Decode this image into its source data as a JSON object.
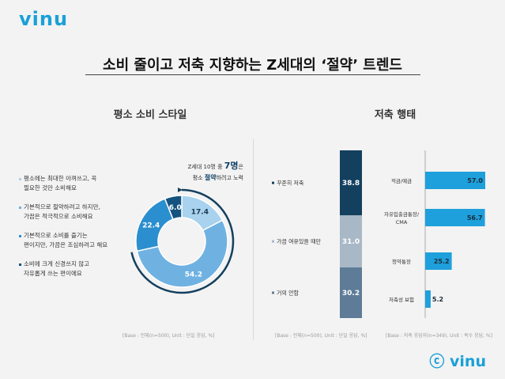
{
  "brand": {
    "logo_text": "vinu",
    "copyright_text": "ⓒ vinu",
    "accent": "#1aa0d8"
  },
  "header": {
    "title": "소비 줄이고 저축 지향하는 Z세대의 ‘절약’ 트렌드"
  },
  "left_section": {
    "title": "평소 소비 스타일",
    "callout_line1_pre": "Z세대 10명 중 ",
    "callout_line1_bold": "7명",
    "callout_line1_post": "은",
    "callout_line2_pre": "평소 ",
    "callout_line2_bold": "절약",
    "callout_line2_post": "하려고 노력",
    "base_note": "[Base : 전체(n=500), Unit : 단일 응답, %]",
    "legend": [
      {
        "line1": "평소에는 최대한 아껴쓰고, 꼭",
        "line2": "필요한 것만 소비해요",
        "color": "#a8d2ee"
      },
      {
        "line1": "기본적으로 절약하려고 하지만,",
        "line2": "가끔은 적극적으로 소비해요",
        "color": "#6fb2e2"
      },
      {
        "line1": "기본적으로 소비를 즐기는",
        "line2": "편이지만, 가끔은 조심하려고 해요",
        "color": "#2b8fcf"
      },
      {
        "line1": "소비에 크게 신경쓰지 않고",
        "line2": "자유롭게 쓰는 편이에요",
        "color": "#14537f"
      }
    ]
  },
  "middle_section": {
    "title": "저축 행태",
    "base_note": "[Base : 전체(n=500), Unit : 단일 응답, %]",
    "labels": [
      "꾸준히 저축",
      "가끔 여유있을 때만",
      "거의 안함"
    ]
  },
  "right_section": {
    "base_note": "[Base : 저축 응답자(n=349), Unit : 복수 응답, %]",
    "labels": [
      "적금/예금",
      "자유입출금통장/\nCMA",
      "청약통장",
      "저축성 보험"
    ]
  },
  "chart_data": [
    {
      "type": "pie",
      "title": "평소 소비 스타일",
      "categories": [
        "평소에는 최대한 아껴쓰고, 꼭 필요한 것만 소비해요",
        "기본적으로 절약하려고 하지만, 가끔은 적극적으로 소비해요",
        "기본적으로 소비를 즐기는 편이지만, 가끔은 조심하려고 해요",
        "소비에 크게 신경쓰지 않고 자유롭게 쓰는 편이에요"
      ],
      "values": [
        17.4,
        54.2,
        22.4,
        6.0
      ],
      "colors": [
        "#a8d2ee",
        "#6fb2e2",
        "#2b8fcf",
        "#14537f"
      ],
      "donut": true
    },
    {
      "type": "bar",
      "title": "저축 행태",
      "stacked": true,
      "categories": [
        "꾸준히 저축",
        "가끔 여유있을 때만",
        "거의 안함"
      ],
      "values": [
        38.8,
        31.0,
        30.2
      ],
      "colors": [
        "#14405f",
        "#a9b8c6",
        "#5e7c98"
      ]
    },
    {
      "type": "bar",
      "orientation": "horizontal",
      "categories": [
        "적금/예금",
        "자유입출금통장/CMA",
        "청약통장",
        "저축성 보험"
      ],
      "values": [
        57.0,
        56.7,
        25.2,
        5.2
      ],
      "color": "#1ea0dc"
    }
  ]
}
